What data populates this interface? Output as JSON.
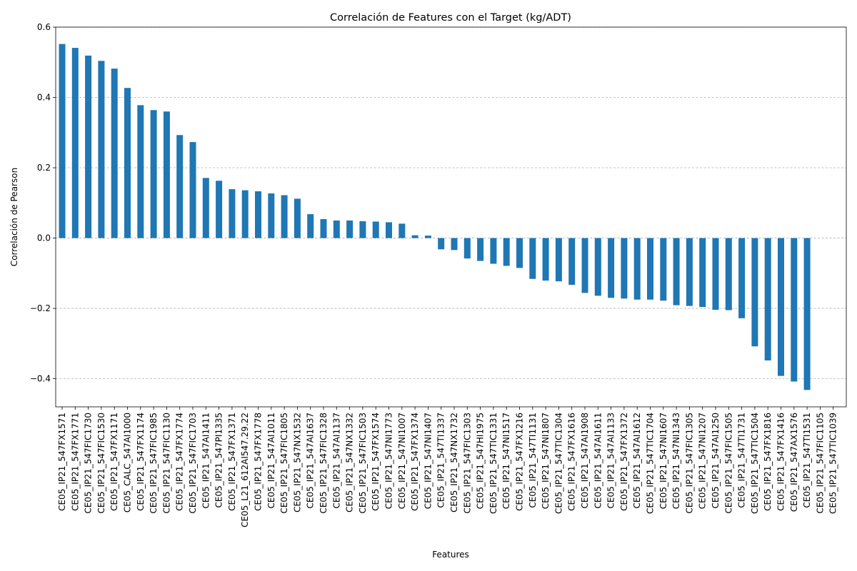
{
  "colors": {
    "bar": "#1f77b4",
    "grid": "#b0b0b0",
    "axis": "#000000"
  },
  "chart_data": {
    "type": "bar",
    "title": "Correlación de Features con el Target (kg/ADT)",
    "xlabel": "Features",
    "ylabel": "Correlación de Pearson",
    "ylim": [
      -0.48,
      0.6
    ],
    "yticks": [
      -0.4,
      -0.2,
      0.0,
      0.2,
      0.4,
      0.6
    ],
    "ytick_labels": [
      "−0.4",
      "−0.2",
      "0.0",
      "0.2",
      "0.4",
      "0.6"
    ],
    "grid": "y-dashed",
    "categories": [
      "CE05_IP21_547FX1571",
      "CE05_IP21_547FX1771",
      "CE05_IP21_547FIC1730",
      "CE05_IP21_547FIC1530",
      "CE05_IP21_547FX1171",
      "CE05_CALC_547AI1000",
      "CE05_IP21_547FX1174",
      "CE05_IP21_547FIC1985",
      "CE05_IP21_547FIC1130",
      "CE05_IP21_547FX1774",
      "CE05_IP21_547FIC1703",
      "CE05_IP21_547AI1411",
      "CE05_IP21_547PI1335",
      "CE05_IP21_547FX1371",
      "CE05_L21_612AI547.29.22",
      "CE05_IP21_547FX1778",
      "CE05_IP21_547AI1011",
      "CE05_IP21_547FIC1805",
      "CE05_IP21_547NX1532",
      "CE05_IP21_547AI1637",
      "CE05_IP21_547FIC1328",
      "CE05_IP21_547AI1137",
      "CE05_IP21_547NX1332",
      "CE05_IP21_547FIC1503",
      "CE05_IP21_547FX1574",
      "CE05_IP21_547NI1773",
      "CE05_IP21_547NI1007",
      "CE05_IP21_547FX1374",
      "CE05_IP21_547NI1407",
      "CE05_IP21_547TI1337",
      "CE05_IP21_547NX1732",
      "CE05_IP21_547FIC1303",
      "CE05_IP21_547HI1975",
      "CE05_IP21_547TIC1331",
      "CE05_IP21_547NI1517",
      "CE05_IP21_547FX1216",
      "CE05_IP21_547TI1131",
      "CE05_IP21_547NI1807",
      "CE05_IP21_547TIC1304",
      "CE05_IP21_547FX1616",
      "CE05_IP21_547AI1908",
      "CE05_IP21_547AI1611",
      "CE05_IP21_547AI1133",
      "CE05_IP21_547FX1372",
      "CE05_IP21_547AI1612",
      "CE05_IP21_547TIC1704",
      "CE05_IP21_547NI1607",
      "CE05_IP21_547NI1343",
      "CE05_IP21_547FIC1305",
      "CE05_IP21_547NI1207",
      "CE05_IP21_547AI1250",
      "CE05_IP21_547FIC1505",
      "CE05_IP21_547TI1731",
      "CE05_IP21_547TIC1504",
      "CE05_IP21_547FX1816",
      "CE05_IP21_547FX1416",
      "CE05_IP21_547AX1576",
      "CE05_IP21_547TI1531",
      "CE05_IP21_547FIC1105",
      "CE05_IP21_547TIC1039"
    ],
    "values": [
      0.552,
      0.541,
      0.519,
      0.504,
      0.482,
      0.427,
      0.378,
      0.364,
      0.36,
      0.293,
      0.273,
      0.171,
      0.163,
      0.139,
      0.136,
      0.133,
      0.127,
      0.122,
      0.112,
      0.068,
      0.054,
      0.05,
      0.05,
      0.048,
      0.047,
      0.045,
      0.041,
      0.008,
      0.007,
      -0.032,
      -0.034,
      -0.058,
      -0.065,
      -0.073,
      -0.079,
      -0.085,
      -0.116,
      -0.121,
      -0.123,
      -0.133,
      -0.156,
      -0.164,
      -0.17,
      -0.172,
      -0.175,
      -0.175,
      -0.178,
      -0.191,
      -0.193,
      -0.196,
      -0.204,
      -0.205,
      -0.228,
      -0.308,
      -0.348,
      -0.392,
      -0.408,
      -0.432,
      0.0,
      0.0
    ]
  }
}
